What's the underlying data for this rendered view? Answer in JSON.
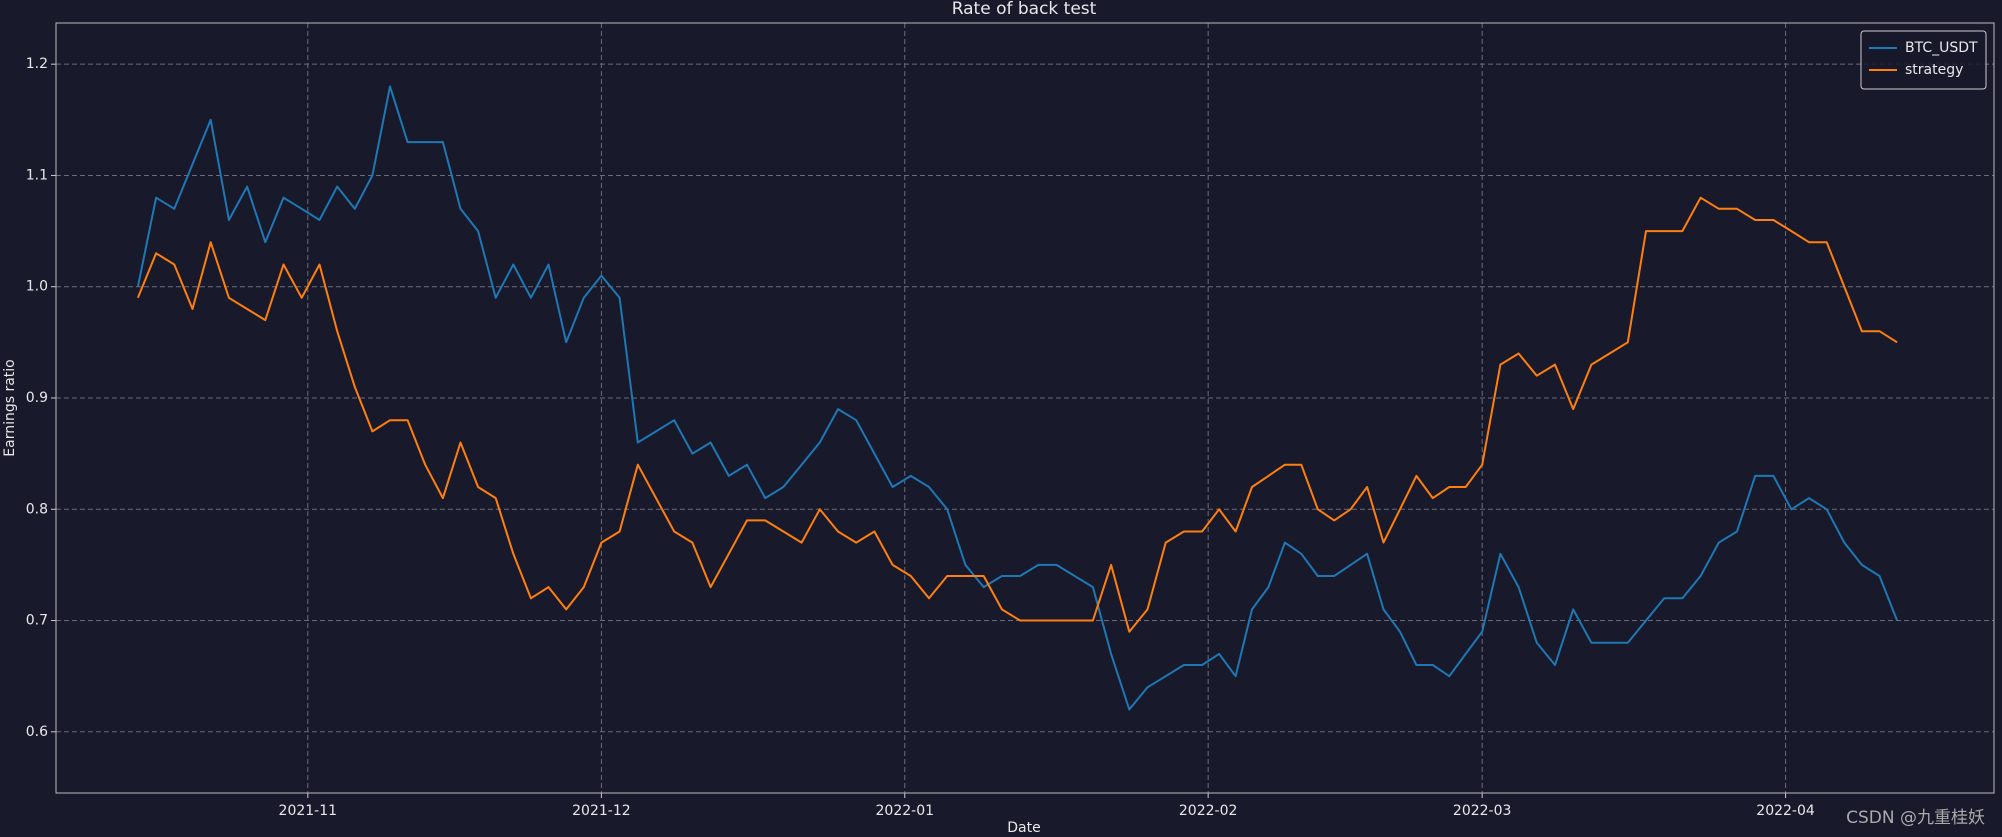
{
  "chart_data": {
    "type": "line",
    "title": "Rate of back test",
    "x_label": "Date",
    "y_label": "Earnings ratio",
    "watermark": "CSDN @九重桂妖",
    "x": [
      10.44,
      10.5,
      10.56,
      10.62,
      10.68,
      10.74,
      10.8,
      10.86,
      10.92,
      10.98,
      11.04,
      11.1,
      11.16,
      11.22,
      11.28,
      11.34,
      11.4,
      11.46,
      11.52,
      11.58,
      11.64,
      11.7,
      11.76,
      11.82,
      11.88,
      11.94,
      12,
      12.06,
      12.12,
      12.18,
      12.24,
      12.3,
      12.36,
      12.42,
      12.48,
      12.54,
      12.6,
      12.66,
      12.72,
      12.78,
      12.84,
      12.9,
      12.96,
      13.02,
      13.08,
      13.14,
      13.2,
      13.26,
      13.32,
      13.38,
      13.44,
      13.5,
      13.56,
      13.62,
      13.68,
      13.74,
      13.8,
      13.86,
      13.92,
      13.98,
      14.04,
      14.1,
      14.16,
      14.22,
      14.28,
      14.34,
      14.4,
      14.46,
      14.52,
      14.58,
      14.64,
      14.7,
      14.76,
      14.82,
      14.88,
      14.94,
      15,
      15.06,
      15.12,
      15.18,
      15.24,
      15.3,
      15.36,
      15.42,
      15.48,
      15.54,
      15.6,
      15.66,
      15.72,
      15.78,
      15.84,
      15.9,
      15.96,
      16.02,
      16.08,
      16.14,
      16.2,
      16.26,
      16.32,
      16.38
    ],
    "series": [
      {
        "name": "BTC_USDT",
        "color": "#1f77b4",
        "values": [
          1.0,
          1.08,
          1.07,
          1.11,
          1.15,
          1.06,
          1.09,
          1.04,
          1.08,
          1.07,
          1.06,
          1.09,
          1.07,
          1.1,
          1.18,
          1.13,
          1.13,
          1.13,
          1.07,
          1.05,
          0.99,
          1.02,
          0.99,
          1.02,
          0.95,
          0.99,
          1.01,
          0.99,
          0.86,
          0.87,
          0.88,
          0.85,
          0.86,
          0.83,
          0.84,
          0.81,
          0.82,
          0.84,
          0.86,
          0.89,
          0.88,
          0.85,
          0.82,
          0.83,
          0.82,
          0.8,
          0.75,
          0.73,
          0.74,
          0.74,
          0.75,
          0.75,
          0.74,
          0.73,
          0.67,
          0.62,
          0.64,
          0.65,
          0.66,
          0.66,
          0.67,
          0.65,
          0.71,
          0.73,
          0.77,
          0.76,
          0.74,
          0.74,
          0.75,
          0.76,
          0.71,
          0.69,
          0.66,
          0.66,
          0.65,
          0.67,
          0.69,
          0.76,
          0.73,
          0.68,
          0.66,
          0.71,
          0.68,
          0.68,
          0.68,
          0.7,
          0.72,
          0.72,
          0.74,
          0.77,
          0.78,
          0.83,
          0.83,
          0.8,
          0.81,
          0.8,
          0.77,
          0.75,
          0.74,
          0.7
        ]
      },
      {
        "name": "strategy",
        "color": "#ff7f0e",
        "values": [
          0.99,
          1.03,
          1.02,
          0.98,
          1.04,
          0.99,
          0.98,
          0.97,
          1.02,
          0.99,
          1.02,
          0.96,
          0.91,
          0.87,
          0.88,
          0.88,
          0.84,
          0.81,
          0.86,
          0.82,
          0.81,
          0.76,
          0.72,
          0.73,
          0.71,
          0.73,
          0.77,
          0.78,
          0.84,
          0.81,
          0.78,
          0.77,
          0.73,
          0.76,
          0.79,
          0.79,
          0.78,
          0.77,
          0.8,
          0.78,
          0.77,
          0.78,
          0.75,
          0.74,
          0.72,
          0.74,
          0.74,
          0.74,
          0.71,
          0.7,
          0.7,
          0.7,
          0.7,
          0.7,
          0.75,
          0.69,
          0.71,
          0.77,
          0.78,
          0.78,
          0.8,
          0.78,
          0.82,
          0.83,
          0.84,
          0.84,
          0.8,
          0.79,
          0.8,
          0.82,
          0.77,
          0.8,
          0.83,
          0.81,
          0.82,
          0.82,
          0.84,
          0.93,
          0.94,
          0.92,
          0.93,
          0.89,
          0.93,
          0.94,
          0.95,
          1.05,
          1.05,
          1.05,
          1.08,
          1.07,
          1.07,
          1.06,
          1.06,
          1.05,
          1.04,
          1.04,
          1.0,
          0.96,
          0.96,
          0.95
        ]
      }
    ],
    "xlim": [
      10.17,
      16.71
    ],
    "xticks": [
      {
        "value": 11,
        "label": "2021-11"
      },
      {
        "value": 12,
        "label": "2021-12"
      },
      {
        "value": 13,
        "label": "2022-01"
      },
      {
        "value": 14,
        "label": "2022-02"
      },
      {
        "value": 15,
        "label": "2022-03"
      },
      {
        "value": 16,
        "label": "2022-04"
      }
    ],
    "ylim": [
      0.545,
      1.237
    ],
    "yticks": [
      0.6,
      0.7,
      0.8,
      0.9,
      {
        "value": 1,
        "label": "1.0"
      },
      1.1,
      1.2
    ],
    "grid": true,
    "legend": "upper-right"
  }
}
